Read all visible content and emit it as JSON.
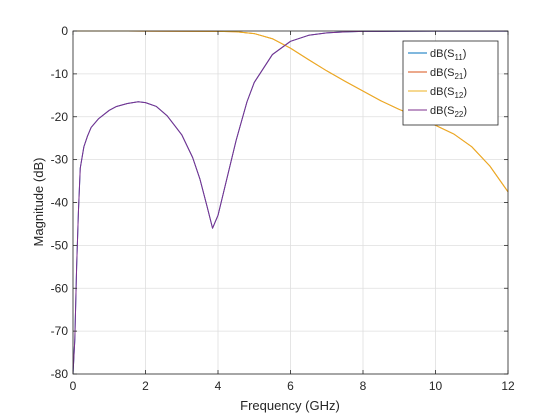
{
  "chart_data": {
    "type": "line",
    "title": "",
    "xlabel": "Frequency (GHz)",
    "ylabel": "Magnitude (dB)",
    "xlim": [
      0,
      12
    ],
    "ylim": [
      -80,
      0
    ],
    "xticks": [
      0,
      2,
      4,
      6,
      8,
      10,
      12
    ],
    "yticks": [
      0,
      -10,
      -20,
      -30,
      -40,
      -50,
      -60,
      -70,
      -80
    ],
    "xtick_labels": [
      "0",
      "2",
      "4",
      "6",
      "8",
      "10",
      "12"
    ],
    "ytick_labels": [
      "0",
      "-10",
      "-20",
      "-30",
      "-40",
      "-50",
      "-60",
      "-70",
      "-80"
    ],
    "grid": true,
    "legend_position": "top-right",
    "series": [
      {
        "name": "dB(S11)",
        "label_base": "dB(S",
        "label_sub": "11",
        "label_close": ")",
        "color": "#0072bd",
        "x": [
          0.0,
          0.05,
          0.1,
          0.15,
          0.2,
          0.3,
          0.4,
          0.5,
          0.7,
          1.0,
          1.2,
          1.5,
          1.8,
          2.0,
          2.3,
          2.6,
          3.0,
          3.3,
          3.5,
          3.7,
          3.85,
          4.0,
          4.2,
          4.5,
          4.8,
          5.0,
          5.5,
          6.0,
          6.5,
          7.0,
          7.5,
          8.0,
          9.0,
          10.0,
          11.0,
          12.0
        ],
        "y": [
          -80,
          -72,
          -55,
          -42,
          -32,
          -27,
          -24.5,
          -22.5,
          -20.5,
          -18.5,
          -17.6,
          -16.9,
          -16.5,
          -16.7,
          -17.6,
          -19.8,
          -24.2,
          -29.5,
          -34.5,
          -41.0,
          -46.0,
          -43.0,
          -36.0,
          -25.5,
          -16.5,
          -12.0,
          -5.5,
          -2.4,
          -1.0,
          -0.45,
          -0.2,
          -0.1,
          -0.05,
          -0.03,
          -0.02,
          -0.02
        ]
      },
      {
        "name": "dB(S21)",
        "label_base": "dB(S",
        "label_sub": "21",
        "label_close": ")",
        "color": "#d95319",
        "x": [
          0.0,
          0.5,
          1.0,
          2.0,
          3.0,
          4.0,
          4.5,
          5.0,
          5.5,
          6.0,
          6.5,
          7.0,
          7.5,
          8.0,
          8.5,
          9.0,
          9.5,
          10.0,
          10.5,
          11.0,
          11.5,
          12.0
        ],
        "y": [
          0.0,
          0.0,
          0.0,
          -0.02,
          -0.05,
          -0.1,
          -0.18,
          -0.6,
          -1.8,
          -4.0,
          -6.7,
          -9.3,
          -11.7,
          -14.0,
          -16.3,
          -18.3,
          -20.0,
          -22.0,
          -24.0,
          -27.0,
          -31.5,
          -37.5
        ]
      },
      {
        "name": "dB(S12)",
        "label_base": "dB(S",
        "label_sub": "12",
        "label_close": ")",
        "color": "#edb120",
        "x": [
          0.0,
          0.5,
          1.0,
          2.0,
          3.0,
          4.0,
          4.5,
          5.0,
          5.5,
          6.0,
          6.5,
          7.0,
          7.5,
          8.0,
          8.5,
          9.0,
          9.5,
          10.0,
          10.5,
          11.0,
          11.5,
          12.0
        ],
        "y": [
          0.0,
          0.0,
          0.0,
          -0.02,
          -0.05,
          -0.1,
          -0.18,
          -0.6,
          -1.8,
          -4.0,
          -6.7,
          -9.3,
          -11.7,
          -14.0,
          -16.3,
          -18.3,
          -20.0,
          -22.0,
          -24.0,
          -27.0,
          -31.5,
          -37.5
        ]
      },
      {
        "name": "dB(S22)",
        "label_base": "dB(S",
        "label_sub": "22",
        "label_close": ")",
        "color": "#7e2f8e",
        "x": [
          0.0,
          0.05,
          0.1,
          0.15,
          0.2,
          0.3,
          0.4,
          0.5,
          0.7,
          1.0,
          1.2,
          1.5,
          1.8,
          2.0,
          2.3,
          2.6,
          3.0,
          3.3,
          3.5,
          3.7,
          3.85,
          4.0,
          4.2,
          4.5,
          4.8,
          5.0,
          5.5,
          6.0,
          6.5,
          7.0,
          7.5,
          8.0,
          9.0,
          10.0,
          11.0,
          12.0
        ],
        "y": [
          -80,
          -72,
          -55,
          -42,
          -32,
          -27,
          -24.5,
          -22.5,
          -20.5,
          -18.5,
          -17.6,
          -16.9,
          -16.5,
          -16.7,
          -17.6,
          -19.8,
          -24.2,
          -29.5,
          -34.5,
          -41.0,
          -46.0,
          -43.0,
          -36.0,
          -25.5,
          -16.5,
          -12.0,
          -5.5,
          -2.4,
          -1.0,
          -0.45,
          -0.2,
          -0.1,
          -0.05,
          -0.03,
          -0.02,
          -0.02
        ]
      }
    ]
  }
}
